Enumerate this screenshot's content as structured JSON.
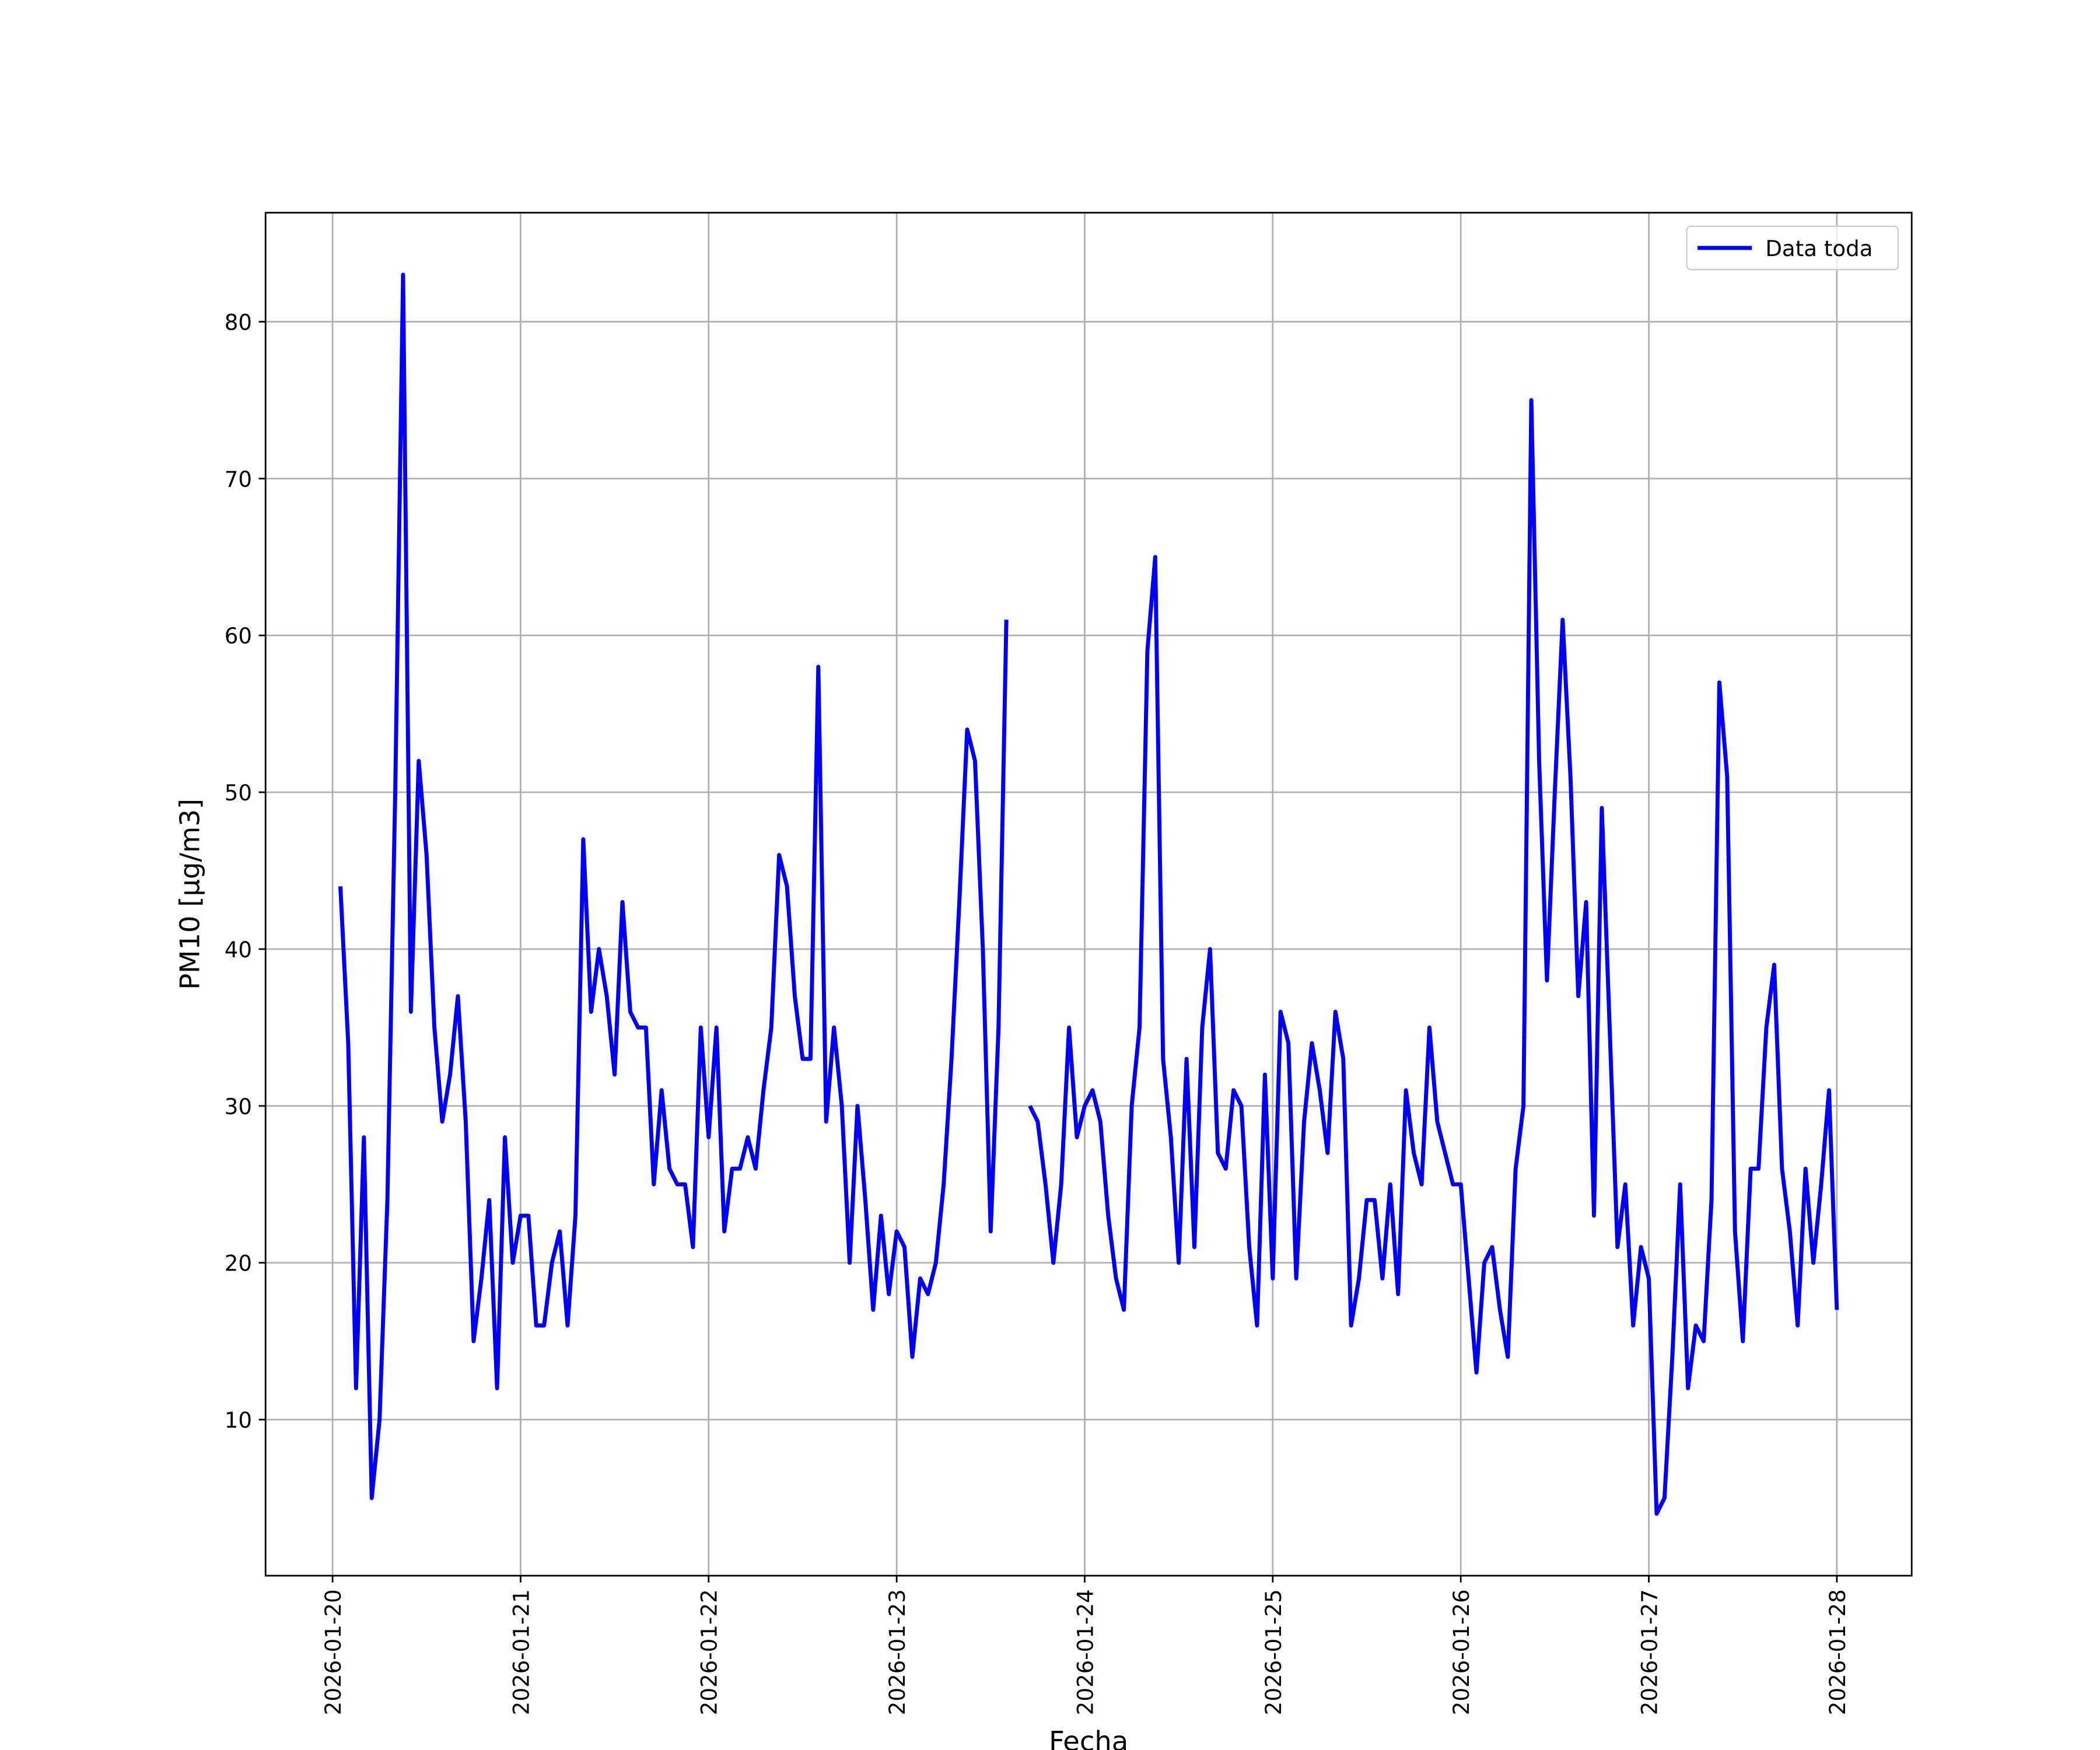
{
  "chart_data": {
    "type": "line",
    "xlabel": "Fecha",
    "ylabel": "PM10 [μg/m3]",
    "x": [
      "2026-01-20 01:00",
      "2026-01-20 02:00",
      "2026-01-20 03:00",
      "2026-01-20 04:00",
      "2026-01-20 05:00",
      "2026-01-20 06:00",
      "2026-01-20 07:00",
      "2026-01-20 08:00",
      "2026-01-20 09:00",
      "2026-01-20 10:00",
      "2026-01-20 11:00",
      "2026-01-20 12:00",
      "2026-01-20 13:00",
      "2026-01-20 14:00",
      "2026-01-20 15:00",
      "2026-01-20 16:00",
      "2026-01-20 17:00",
      "2026-01-20 18:00",
      "2026-01-20 19:00",
      "2026-01-20 20:00",
      "2026-01-20 21:00",
      "2026-01-20 22:00",
      "2026-01-20 23:00",
      "2026-01-21 00:00",
      "2026-01-21 01:00",
      "2026-01-21 02:00",
      "2026-01-21 03:00",
      "2026-01-21 04:00",
      "2026-01-21 05:00",
      "2026-01-21 06:00",
      "2026-01-21 07:00",
      "2026-01-21 08:00",
      "2026-01-21 09:00",
      "2026-01-21 10:00",
      "2026-01-21 11:00",
      "2026-01-21 12:00",
      "2026-01-21 13:00",
      "2026-01-21 14:00",
      "2026-01-21 15:00",
      "2026-01-21 16:00",
      "2026-01-21 17:00",
      "2026-01-21 18:00",
      "2026-01-21 19:00",
      "2026-01-21 20:00",
      "2026-01-21 21:00",
      "2026-01-21 22:00",
      "2026-01-21 23:00",
      "2026-01-22 00:00",
      "2026-01-22 01:00",
      "2026-01-22 02:00",
      "2026-01-22 03:00",
      "2026-01-22 04:00",
      "2026-01-22 05:00",
      "2026-01-22 06:00",
      "2026-01-22 07:00",
      "2026-01-22 08:00",
      "2026-01-22 09:00",
      "2026-01-22 10:00",
      "2026-01-22 11:00",
      "2026-01-22 12:00",
      "2026-01-22 13:00",
      "2026-01-22 14:00",
      "2026-01-22 15:00",
      "2026-01-22 16:00",
      "2026-01-22 17:00",
      "2026-01-22 18:00",
      "2026-01-22 19:00",
      "2026-01-22 20:00",
      "2026-01-22 21:00",
      "2026-01-22 22:00",
      "2026-01-22 23:00",
      "2026-01-23 00:00",
      "2026-01-23 01:00",
      "2026-01-23 02:00",
      "2026-01-23 03:00",
      "2026-01-23 04:00",
      "2026-01-23 05:00",
      "2026-01-23 06:00",
      "2026-01-23 07:00",
      "2026-01-23 08:00",
      "2026-01-23 09:00",
      "2026-01-23 10:00",
      "2026-01-23 11:00",
      "2026-01-23 12:00",
      "2026-01-23 13:00",
      "2026-01-23 14:00",
      "2026-01-23 15:00",
      "2026-01-23 16:00",
      "2026-01-23 17:00",
      "2026-01-23 18:00",
      "2026-01-23 19:00",
      "2026-01-23 20:00",
      "2026-01-23 21:00",
      "2026-01-23 22:00",
      "2026-01-23 23:00",
      "2026-01-24 00:00",
      "2026-01-24 01:00",
      "2026-01-24 02:00",
      "2026-01-24 03:00",
      "2026-01-24 04:00",
      "2026-01-24 05:00",
      "2026-01-24 06:00",
      "2026-01-24 07:00",
      "2026-01-24 08:00",
      "2026-01-24 09:00",
      "2026-01-24 10:00",
      "2026-01-24 11:00",
      "2026-01-24 12:00",
      "2026-01-24 13:00",
      "2026-01-24 14:00",
      "2026-01-24 15:00",
      "2026-01-24 16:00",
      "2026-01-24 17:00",
      "2026-01-24 18:00",
      "2026-01-24 19:00",
      "2026-01-24 20:00",
      "2026-01-24 21:00",
      "2026-01-24 22:00",
      "2026-01-24 23:00",
      "2026-01-25 00:00",
      "2026-01-25 01:00",
      "2026-01-25 02:00",
      "2026-01-25 03:00",
      "2026-01-25 04:00",
      "2026-01-25 05:00",
      "2026-01-25 06:00",
      "2026-01-25 07:00",
      "2026-01-25 08:00",
      "2026-01-25 09:00",
      "2026-01-25 10:00",
      "2026-01-25 11:00",
      "2026-01-25 12:00",
      "2026-01-25 13:00",
      "2026-01-25 14:00",
      "2026-01-25 15:00",
      "2026-01-25 16:00",
      "2026-01-25 17:00",
      "2026-01-25 18:00",
      "2026-01-25 19:00",
      "2026-01-25 20:00",
      "2026-01-25 21:00",
      "2026-01-25 22:00",
      "2026-01-25 23:00",
      "2026-01-26 00:00",
      "2026-01-26 01:00",
      "2026-01-26 02:00",
      "2026-01-26 03:00",
      "2026-01-26 04:00",
      "2026-01-26 05:00",
      "2026-01-26 06:00",
      "2026-01-26 07:00",
      "2026-01-26 08:00",
      "2026-01-26 09:00",
      "2026-01-26 10:00",
      "2026-01-26 11:00",
      "2026-01-26 12:00",
      "2026-01-26 13:00",
      "2026-01-26 14:00",
      "2026-01-26 15:00",
      "2026-01-26 16:00",
      "2026-01-26 17:00",
      "2026-01-26 18:00",
      "2026-01-26 19:00",
      "2026-01-26 20:00",
      "2026-01-26 21:00",
      "2026-01-26 22:00",
      "2026-01-26 23:00",
      "2026-01-27 00:00",
      "2026-01-27 01:00",
      "2026-01-27 02:00",
      "2026-01-27 03:00",
      "2026-01-27 04:00",
      "2026-01-27 05:00",
      "2026-01-27 06:00",
      "2026-01-27 07:00",
      "2026-01-27 08:00",
      "2026-01-27 09:00",
      "2026-01-27 10:00",
      "2026-01-27 11:00",
      "2026-01-27 12:00",
      "2026-01-27 13:00",
      "2026-01-27 14:00",
      "2026-01-27 15:00",
      "2026-01-27 16:00",
      "2026-01-27 17:00",
      "2026-01-27 18:00",
      "2026-01-27 19:00",
      "2026-01-27 20:00",
      "2026-01-27 21:00",
      "2026-01-27 22:00",
      "2026-01-27 23:00",
      "2026-01-28 00:00"
    ],
    "series": [
      {
        "name": "Data toda",
        "color": "#0000ff",
        "values": [
          44,
          34,
          12,
          28,
          5,
          10,
          24,
          50,
          83,
          36,
          52,
          46,
          35,
          29,
          32,
          37,
          29,
          15,
          19,
          24,
          12,
          28,
          20,
          23,
          23,
          16,
          16,
          20,
          22,
          16,
          23,
          47,
          36,
          40,
          37,
          32,
          43,
          36,
          35,
          35,
          25,
          31,
          26,
          25,
          25,
          21,
          35,
          28,
          35,
          22,
          26,
          26,
          28,
          26,
          31,
          35,
          46,
          44,
          37,
          33,
          33,
          58,
          29,
          35,
          30,
          20,
          30,
          24,
          17,
          23,
          18,
          22,
          21,
          14,
          19,
          18,
          20,
          25,
          33,
          43,
          54,
          52,
          40,
          22,
          35,
          61,
          null,
          null,
          30,
          29,
          25,
          20,
          25,
          35,
          28,
          30,
          31,
          29,
          23,
          19,
          17,
          30,
          35,
          59,
          65,
          33,
          28,
          20,
          33,
          21,
          35,
          40,
          27,
          26,
          31,
          30,
          21,
          16,
          32,
          19,
          36,
          34,
          19,
          29,
          34,
          31,
          27,
          36,
          33,
          16,
          19,
          24,
          24,
          19,
          25,
          18,
          31,
          27,
          25,
          35,
          29,
          27,
          25,
          25,
          19,
          13,
          20,
          21,
          17,
          14,
          26,
          30,
          75,
          52,
          38,
          50,
          61,
          51,
          37,
          43,
          23,
          49,
          35,
          21,
          25,
          16,
          21,
          19,
          4,
          5,
          14,
          25,
          12,
          16,
          15,
          24,
          57,
          51,
          22,
          15,
          26,
          26,
          35,
          39,
          26,
          22,
          16,
          26,
          20,
          25,
          31,
          17
        ]
      }
    ],
    "xlim": [
      "2026-01-19 15:27",
      "2026-01-28 09:33"
    ],
    "xticks": [
      "2026-01-20",
      "2026-01-21",
      "2026-01-22",
      "2026-01-23",
      "2026-01-24",
      "2026-01-25",
      "2026-01-26",
      "2026-01-27",
      "2026-01-28"
    ],
    "ylim": [
      0.05,
      86.95
    ],
    "yticks": [
      10,
      20,
      30,
      40,
      50,
      60,
      70,
      80
    ],
    "grid": true,
    "legend": "upper right"
  }
}
